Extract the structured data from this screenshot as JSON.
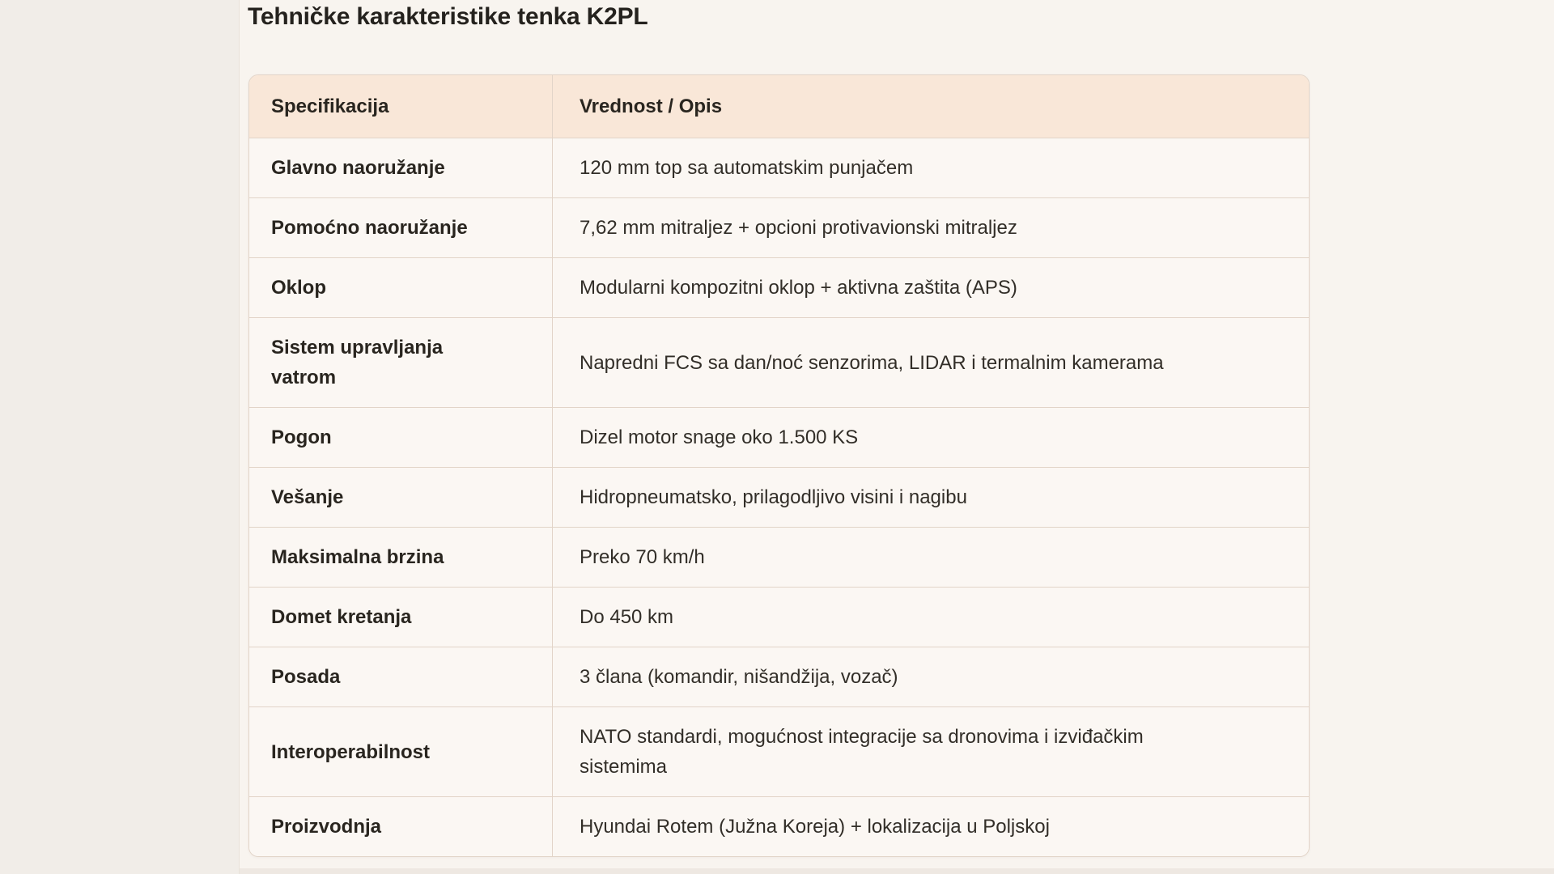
{
  "page": {
    "title": "Tehničke karakteristike tenka K2PL"
  },
  "colors": {
    "page_bg": "#f1ede8",
    "panel_bg": "#f8f4ef",
    "header_bg": "#f9e7d8",
    "row_bg": "#fbf7f3",
    "border_color": "#e2d4c8",
    "text_color": "#2b2723"
  },
  "table": {
    "columns": {
      "spec": "Specifikacija",
      "value": "Vrednost / Opis"
    },
    "rows": [
      {
        "label": "Glavno naoružanje",
        "value": "120 mm top sa automatskim punjačem"
      },
      {
        "label": "Pomoćno naoružanje",
        "value": "7,62 mm mitraljez + opcioni protivavionski mitraljez"
      },
      {
        "label": "Oklop",
        "value": "Modularni kompozitni oklop + aktivna zaštita (APS)"
      },
      {
        "label": "Sistem upravljanja\nvatrom",
        "value": "Napredni FCS sa dan/noć senzorima, LIDAR i termalnim kamerama"
      },
      {
        "label": "Pogon",
        "value": "Dizel motor snage oko 1.500 KS"
      },
      {
        "label": "Vešanje",
        "value": "Hidropneumatsko, prilagodljivo visini i nagibu"
      },
      {
        "label": "Maksimalna brzina",
        "value": "Preko 70 km/h"
      },
      {
        "label": "Domet kretanja",
        "value": "Do 450 km"
      },
      {
        "label": "Posada",
        "value": "3 člana (komandir, nišandžija, vozač)"
      },
      {
        "label": "Interoperabilnost",
        "value": "NATO standardi, mogućnost integracije sa dronovima i izviđačkim\nsistemima"
      },
      {
        "label": "Proizvodnja",
        "value": "Hyundai Rotem (Južna Koreja) + lokalizacija u Poljskoj"
      }
    ]
  }
}
